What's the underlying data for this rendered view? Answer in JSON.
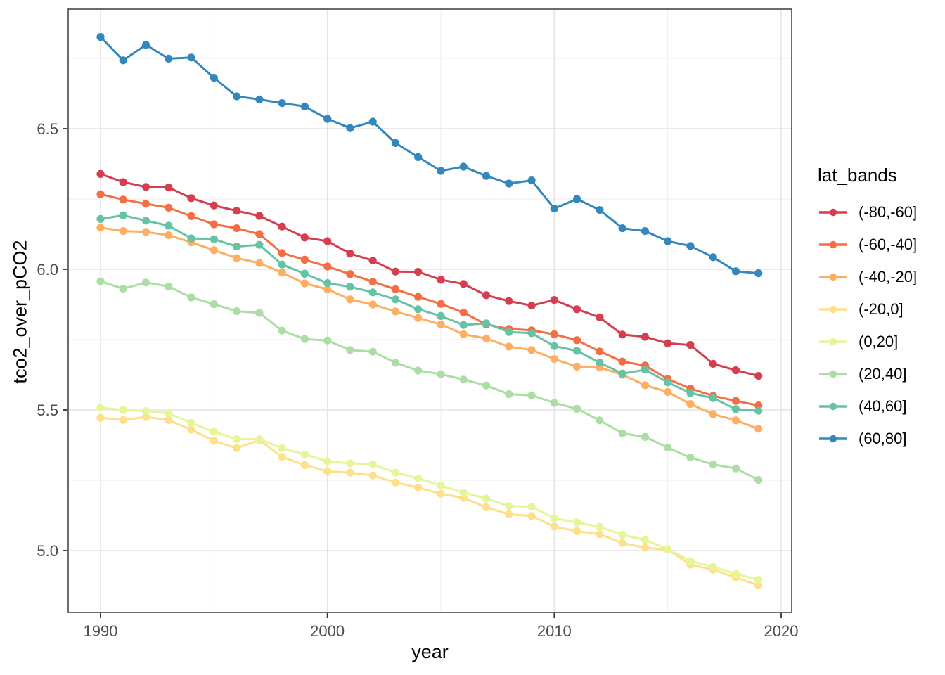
{
  "chart_data": {
    "type": "line",
    "title": "",
    "xlabel": "year",
    "ylabel": "tco2_over_pCO2",
    "legend_title": "lat_bands",
    "legend_position": "right",
    "grid": true,
    "xlim": [
      1988.575,
      2020.465
    ],
    "ylim": [
      4.78,
      6.925
    ],
    "x_ticks": [
      1990,
      2000,
      2010,
      2020
    ],
    "x_tick_labels": [
      "1990",
      "2000",
      "2010",
      "2020"
    ],
    "x_minor_ticks": [
      1995,
      2005,
      2015
    ],
    "y_ticks": [
      5.0,
      5.5,
      6.0,
      6.5
    ],
    "y_tick_labels": [
      "5.0",
      "5.5",
      "6.0",
      "6.5"
    ],
    "y_minor_ticks": [
      5.25,
      5.75,
      6.25,
      6.75
    ],
    "x": [
      1990,
      1991,
      1992,
      1993,
      1994,
      1995,
      1996,
      1997,
      1998,
      1999,
      2000,
      2001,
      2002,
      2003,
      2004,
      2005,
      2006,
      2007,
      2008,
      2009,
      2010,
      2011,
      2012,
      2013,
      2014,
      2015,
      2016,
      2017,
      2018,
      2019
    ],
    "series": [
      {
        "name": "(-80,-60]",
        "color": "#d53e4f",
        "values": [
          6.339,
          6.31,
          6.293,
          6.291,
          6.253,
          6.227,
          6.208,
          6.19,
          6.152,
          6.113,
          6.1,
          6.056,
          6.031,
          5.992,
          5.991,
          5.963,
          5.948,
          5.908,
          5.887,
          5.871,
          5.891,
          5.858,
          5.829,
          5.768,
          5.76,
          5.737,
          5.731,
          5.664,
          5.641,
          5.621
        ]
      },
      {
        "name": "(-60,-40]",
        "color": "#f46d43",
        "values": [
          6.267,
          6.248,
          6.233,
          6.219,
          6.189,
          6.16,
          6.146,
          6.125,
          6.058,
          6.034,
          6.01,
          5.983,
          5.956,
          5.929,
          5.902,
          5.877,
          5.846,
          5.804,
          5.788,
          5.783,
          5.769,
          5.748,
          5.708,
          5.672,
          5.658,
          5.61,
          5.576,
          5.55,
          5.532,
          5.516
        ]
      },
      {
        "name": "(-40,-20]",
        "color": "#fdae61",
        "values": [
          6.148,
          6.136,
          6.133,
          6.121,
          6.096,
          6.068,
          6.04,
          6.022,
          5.988,
          5.95,
          5.929,
          5.893,
          5.875,
          5.85,
          5.827,
          5.804,
          5.769,
          5.754,
          5.725,
          5.713,
          5.681,
          5.654,
          5.651,
          5.625,
          5.588,
          5.564,
          5.521,
          5.485,
          5.463,
          5.433
        ]
      },
      {
        "name": "(-20,0]",
        "color": "#fee08b",
        "values": [
          5.472,
          5.464,
          5.475,
          5.464,
          5.43,
          5.39,
          5.364,
          5.393,
          5.333,
          5.304,
          5.282,
          5.277,
          5.267,
          5.242,
          5.224,
          5.202,
          5.187,
          5.154,
          5.129,
          5.123,
          5.085,
          5.069,
          5.058,
          5.027,
          5.01,
          5.003,
          4.95,
          4.932,
          4.904,
          4.877
        ]
      },
      {
        "name": "(0,20]",
        "color": "#e6f598",
        "values": [
          5.508,
          5.5,
          5.496,
          5.488,
          5.454,
          5.423,
          5.396,
          5.396,
          5.364,
          5.342,
          5.317,
          5.31,
          5.307,
          5.277,
          5.257,
          5.231,
          5.206,
          5.185,
          5.158,
          5.156,
          5.115,
          5.1,
          5.084,
          5.056,
          5.038,
          5.005,
          4.963,
          4.942,
          4.917,
          4.896
        ]
      },
      {
        "name": "(20,40]",
        "color": "#abdda4",
        "values": [
          5.957,
          5.931,
          5.953,
          5.939,
          5.9,
          5.876,
          5.851,
          5.845,
          5.782,
          5.752,
          5.747,
          5.713,
          5.707,
          5.668,
          5.64,
          5.627,
          5.608,
          5.587,
          5.556,
          5.552,
          5.525,
          5.504,
          5.463,
          5.417,
          5.404,
          5.366,
          5.331,
          5.306,
          5.292,
          5.251
        ]
      },
      {
        "name": "(40,60]",
        "color": "#66c2a5",
        "values": [
          6.179,
          6.192,
          6.173,
          6.155,
          6.11,
          6.107,
          6.081,
          6.087,
          6.017,
          5.984,
          5.951,
          5.938,
          5.918,
          5.893,
          5.858,
          5.834,
          5.802,
          5.808,
          5.777,
          5.773,
          5.727,
          5.71,
          5.668,
          5.629,
          5.643,
          5.598,
          5.56,
          5.542,
          5.503,
          5.497
        ]
      },
      {
        "name": "(60,80]",
        "color": "#3288bd",
        "values": [
          6.826,
          6.743,
          6.798,
          6.749,
          6.753,
          6.681,
          6.615,
          6.604,
          6.591,
          6.579,
          6.535,
          6.502,
          6.525,
          6.449,
          6.399,
          6.35,
          6.365,
          6.332,
          6.305,
          6.316,
          6.216,
          6.25,
          6.211,
          6.146,
          6.136,
          6.1,
          6.083,
          6.043,
          5.993,
          5.986
        ]
      }
    ],
    "style": {
      "grid_major_color": "#e3e3e3",
      "grid_minor_color": "#ededed",
      "panel_border_color": "#474747",
      "tick_mark_color": "#333333",
      "tick_label_color": "#4d4d4d",
      "background": "#ffffff"
    }
  }
}
